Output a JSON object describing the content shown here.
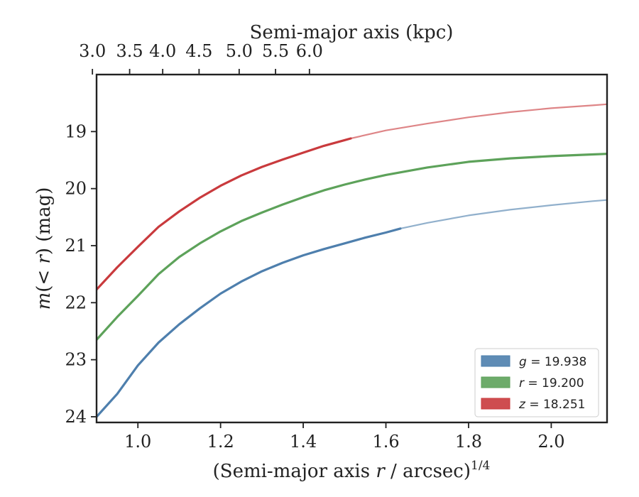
{
  "chart_data": {
    "type": "line",
    "xlabel": "(Semi-major axis r / arcsec)^1/4",
    "xlabel_parts": {
      "before": "(Semi-major axis ",
      "var": "r",
      "after": " / arcsec)",
      "sup": "1/4"
    },
    "ylabel": "m(< r) (mag)",
    "ylabel_parts": {
      "func": "m",
      "open": "(",
      "lt": "< ",
      "var": "r",
      "close": ")",
      "unit": " (mag)"
    },
    "top_xlabel": "Semi-major axis (kpc)",
    "xlim": [
      0.9,
      2.135
    ],
    "ylim": [
      24.1,
      18.0
    ],
    "y_inverted": true,
    "x_ticks": [
      1.0,
      1.2,
      1.4,
      1.6,
      1.8,
      2.0
    ],
    "x_tick_labels": [
      "1.0",
      "1.2",
      "1.4",
      "1.6",
      "1.8",
      "2.0"
    ],
    "y_ticks": [
      19,
      20,
      21,
      22,
      23,
      24
    ],
    "y_tick_labels": [
      "19",
      "20",
      "21",
      "22",
      "23",
      "24"
    ],
    "top_x_ticks_kpc": [
      3.0,
      3.5,
      4.0,
      4.5,
      5.0,
      5.5,
      6.0
    ],
    "top_x_tick_labels": [
      "3.0",
      "3.5",
      "4.0",
      "4.5",
      "5.0",
      "5.5",
      "6.0"
    ],
    "top_x_tick_positions_bottom_units": [
      0.89,
      0.98,
      1.06,
      1.148,
      1.245,
      1.333,
      1.415
    ],
    "grid": false,
    "legend_position": "lower-right",
    "series": [
      {
        "name": "g = 19.938",
        "legend_var": "g",
        "legend_value": " = 19.938",
        "color": "#4e7fad",
        "solid_end": 1.635,
        "x": [
          0.9,
          0.95,
          1.0,
          1.05,
          1.1,
          1.15,
          1.2,
          1.25,
          1.3,
          1.35,
          1.4,
          1.45,
          1.5,
          1.55,
          1.6,
          1.635,
          1.7,
          1.8,
          1.9,
          2.0,
          2.1,
          2.135
        ],
        "y": [
          24.0,
          23.6,
          23.1,
          22.7,
          22.38,
          22.1,
          21.84,
          21.63,
          21.45,
          21.3,
          21.17,
          21.06,
          20.96,
          20.86,
          20.77,
          20.7,
          20.6,
          20.47,
          20.37,
          20.29,
          20.22,
          20.2
        ]
      },
      {
        "name": "r = 19.200",
        "legend_var": "r",
        "legend_value": " = 19.200",
        "color": "#5da25a",
        "solid_end": 2.135,
        "x": [
          0.9,
          0.95,
          1.0,
          1.05,
          1.1,
          1.15,
          1.2,
          1.25,
          1.3,
          1.35,
          1.4,
          1.45,
          1.5,
          1.55,
          1.6,
          1.7,
          1.8,
          1.9,
          2.0,
          2.1,
          2.135
        ],
        "y": [
          22.65,
          22.25,
          21.88,
          21.5,
          21.2,
          20.96,
          20.75,
          20.57,
          20.42,
          20.28,
          20.15,
          20.03,
          19.93,
          19.84,
          19.76,
          19.63,
          19.53,
          19.47,
          19.43,
          19.4,
          19.39
        ]
      },
      {
        "name": "z = 18.251",
        "legend_var": "z",
        "legend_value": " = 18.251",
        "color": "#c93a3d",
        "solid_end": 1.515,
        "x": [
          0.9,
          0.95,
          1.0,
          1.05,
          1.1,
          1.15,
          1.2,
          1.25,
          1.3,
          1.35,
          1.4,
          1.45,
          1.5,
          1.515,
          1.6,
          1.7,
          1.8,
          1.9,
          2.0,
          2.1,
          2.135
        ],
        "y": [
          21.77,
          21.38,
          21.02,
          20.67,
          20.4,
          20.16,
          19.95,
          19.77,
          19.62,
          19.49,
          19.37,
          19.25,
          19.15,
          19.12,
          18.98,
          18.86,
          18.75,
          18.66,
          18.59,
          18.54,
          18.52
        ]
      }
    ]
  }
}
